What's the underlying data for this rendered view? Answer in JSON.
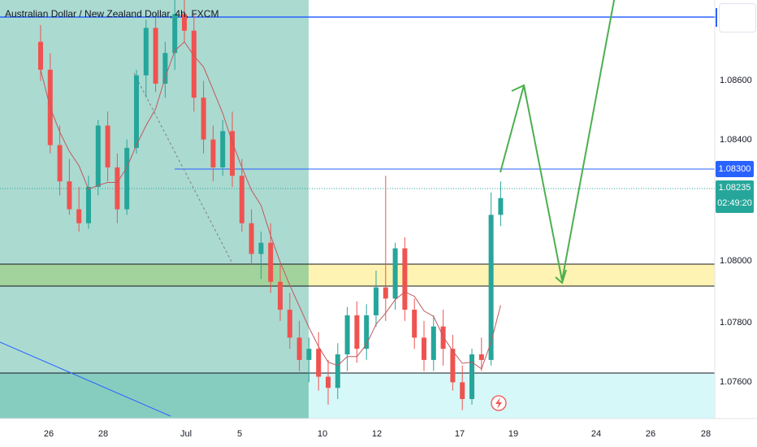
{
  "header": {
    "title": "Australian Dollar / New Zealand Dollar, 4h, FXCM"
  },
  "price_axis": {
    "tag_level": "1.08300",
    "last_price": "1.08235",
    "countdown": "02:49:20"
  },
  "colors": {
    "up": "#26a69a",
    "down": "#ef5350",
    "horizontal_line": "#2962ff",
    "zone_green": "#a5d6a7",
    "zone_yellow": "#fff59d",
    "zone_cyan": "#d9f7f7",
    "past_shade": "#b2dfdb",
    "projection": "#4caf50",
    "moving_average": "#c2585e"
  },
  "icons": {
    "alert": "lightning-bolt-icon"
  },
  "chart_data": {
    "type": "candlestick",
    "symbol": "Australian Dollar / New Zealand Dollar, 4h, FXCM",
    "x_tick_labels": [
      "26",
      "28",
      "Jul",
      "5",
      "10",
      "12",
      "17",
      "19",
      "24",
      "26",
      "28"
    ],
    "y_tick_labels": [
      "1.07600",
      "1.07800",
      "1.08000",
      "1.08400",
      "1.08600"
    ],
    "ylim": [
      1.0745,
      1.0895
    ],
    "levels": {
      "upper_line": 1.0888,
      "resistance": 1.083,
      "green_zone": [
        1.0791,
        1.0799
      ],
      "yellow_zone": [
        1.0791,
        1.0799
      ],
      "support_top": 1.0763
    },
    "last_price": 1.08235,
    "projection_path": [
      1.083,
      1.0858,
      1.0791,
      1.0895
    ],
    "candles_ohlc": [
      [
        1.088,
        1.0886,
        1.0866,
        1.087
      ],
      [
        1.087,
        1.0876,
        1.084,
        1.0843
      ],
      [
        1.0843,
        1.085,
        1.0825,
        1.083
      ],
      [
        1.083,
        1.0838,
        1.0818,
        1.082
      ],
      [
        1.082,
        1.0828,
        1.0812,
        1.0815
      ],
      [
        1.0815,
        1.0832,
        1.0813,
        1.0828
      ],
      [
        1.0828,
        1.0852,
        1.0825,
        1.085
      ],
      [
        1.085,
        1.0855,
        1.083,
        1.0835
      ],
      [
        1.0835,
        1.084,
        1.0815,
        1.082
      ],
      [
        1.082,
        1.0845,
        1.0818,
        1.0842
      ],
      [
        1.0842,
        1.087,
        1.084,
        1.0868
      ],
      [
        1.0868,
        1.0888,
        1.086,
        1.0885
      ],
      [
        1.0885,
        1.089,
        1.0862,
        1.0865
      ],
      [
        1.0865,
        1.088,
        1.086,
        1.0876
      ],
      [
        1.0876,
        1.0895,
        1.087,
        1.089
      ],
      [
        1.089,
        1.0897,
        1.088,
        1.0884
      ],
      [
        1.0884,
        1.089,
        1.0855,
        1.086
      ],
      [
        1.086,
        1.0866,
        1.084,
        1.0845
      ],
      [
        1.0845,
        1.085,
        1.083,
        1.0835
      ],
      [
        1.0835,
        1.0852,
        1.0832,
        1.0848
      ],
      [
        1.0848,
        1.0855,
        1.0828,
        1.0832
      ],
      [
        1.0832,
        1.0838,
        1.0812,
        1.0815
      ],
      [
        1.0815,
        1.082,
        1.08,
        1.0804
      ],
      [
        1.0804,
        1.0812,
        1.0795,
        1.0808
      ],
      [
        1.0808,
        1.0815,
        1.079,
        1.0794
      ],
      [
        1.0794,
        1.08,
        1.078,
        1.0784
      ],
      [
        1.0784,
        1.079,
        1.077,
        1.0774
      ],
      [
        1.0774,
        1.078,
        1.0762,
        1.0766
      ],
      [
        1.0766,
        1.0774,
        1.0758,
        1.077
      ],
      [
        1.077,
        1.0776,
        1.0755,
        1.076
      ],
      [
        1.076,
        1.0766,
        1.075,
        1.0756
      ],
      [
        1.0756,
        1.0772,
        1.0752,
        1.0768
      ],
      [
        1.0768,
        1.0785,
        1.0762,
        1.0782
      ],
      [
        1.0782,
        1.0787,
        1.0765,
        1.077
      ],
      [
        1.077,
        1.0786,
        1.0766,
        1.0782
      ],
      [
        1.0782,
        1.0798,
        1.0778,
        1.0792
      ],
      [
        1.0792,
        1.0832,
        1.078,
        1.0788
      ],
      [
        1.0788,
        1.0808,
        1.0784,
        1.0806
      ],
      [
        1.0806,
        1.081,
        1.078,
        1.0784
      ],
      [
        1.0784,
        1.0788,
        1.077,
        1.0774
      ],
      [
        1.0774,
        1.078,
        1.0762,
        1.0766
      ],
      [
        1.0766,
        1.0782,
        1.0762,
        1.0778
      ],
      [
        1.0778,
        1.0784,
        1.0764,
        1.077
      ],
      [
        1.077,
        1.0775,
        1.0755,
        1.0758
      ],
      [
        1.0758,
        1.0764,
        1.0748,
        1.0752
      ],
      [
        1.0752,
        1.077,
        1.075,
        1.0768
      ],
      [
        1.0768,
        1.0774,
        1.0762,
        1.0766
      ],
      [
        1.0766,
        1.0826,
        1.0764,
        1.0818
      ],
      [
        1.0818,
        1.083,
        1.0814,
        1.0824
      ]
    ]
  }
}
